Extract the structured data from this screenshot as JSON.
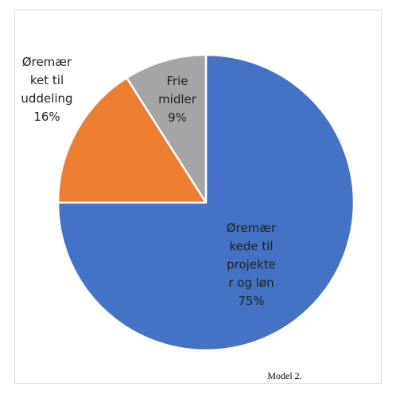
{
  "chart_data": {
    "type": "pie",
    "title": "",
    "start_angle_deg": 0,
    "direction": "clockwise",
    "slices": [
      {
        "label": "Øremærkede til projekter og løn",
        "value": 75,
        "value_label": "75%",
        "color": "#4472C4",
        "label_lines": [
          "Øremær",
          "kede til",
          "projekte",
          "r og løn",
          "75%"
        ]
      },
      {
        "label": "Øremærket til uddeling",
        "value": 16,
        "value_label": "16%",
        "color": "#ED7D31",
        "label_lines": [
          "Øremær",
          "ket til",
          "uddeling",
          "16%"
        ]
      },
      {
        "label": "Frie midler",
        "value": 9,
        "value_label": "9%",
        "color": "#A5A5A5",
        "label_lines": [
          "Frie",
          "midler",
          "9%"
        ]
      }
    ],
    "legend": "none"
  },
  "caption": "Model 2."
}
